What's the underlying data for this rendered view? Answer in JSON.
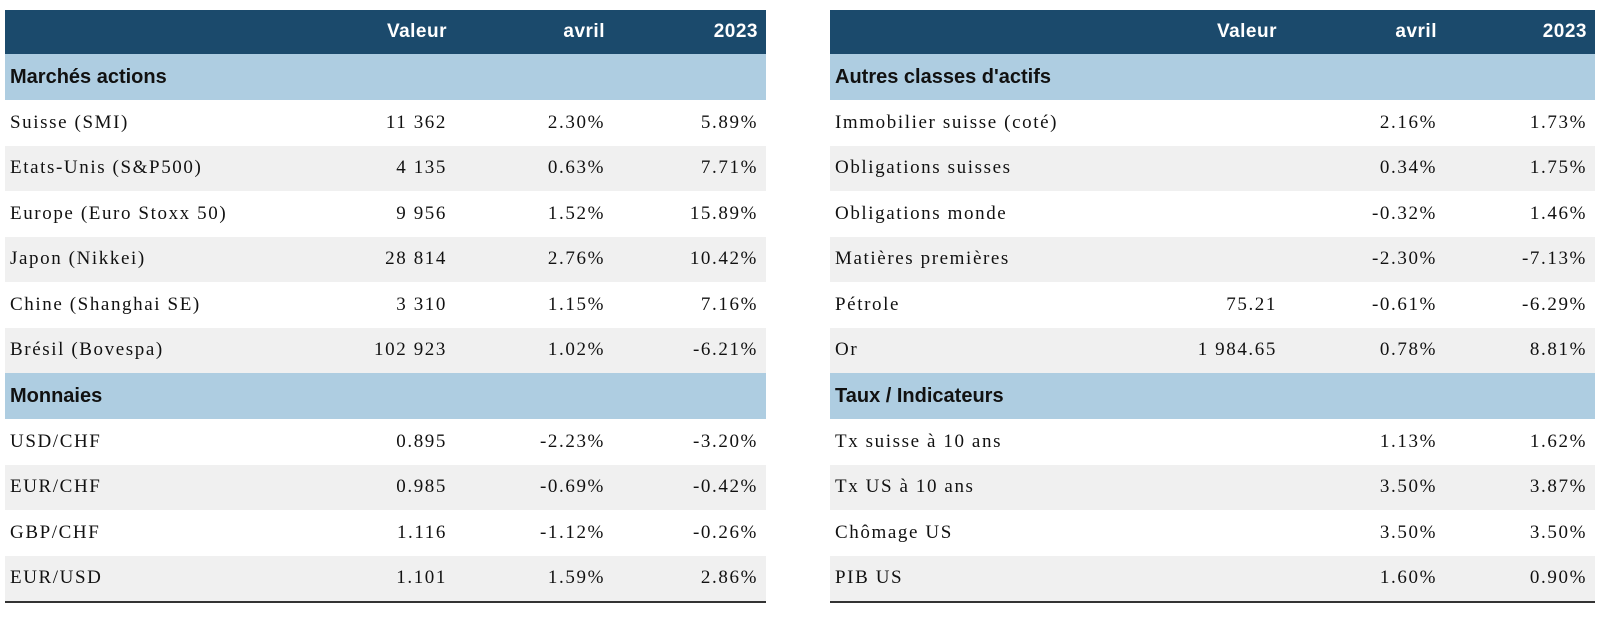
{
  "left": {
    "headers": [
      "",
      "Valeur",
      "avril",
      "2023"
    ],
    "sections": [
      {
        "title": "Marchés actions",
        "rows": [
          {
            "name": "Suisse (SMI)",
            "valeur": "11 362",
            "avril": "2.30%",
            "ytd": "5.89%"
          },
          {
            "name": "Etats-Unis (S&P500)",
            "valeur": "4 135",
            "avril": "0.63%",
            "ytd": "7.71%"
          },
          {
            "name": "Europe (Euro Stoxx 50)",
            "valeur": "9 956",
            "avril": "1.52%",
            "ytd": "15.89%"
          },
          {
            "name": "Japon (Nikkei)",
            "valeur": "28 814",
            "avril": "2.76%",
            "ytd": "10.42%"
          },
          {
            "name": "Chine (Shanghai SE)",
            "valeur": "3 310",
            "avril": "1.15%",
            "ytd": "7.16%"
          },
          {
            "name": "Brésil (Bovespa)",
            "valeur": "102 923",
            "avril": "1.02%",
            "ytd": "-6.21%"
          }
        ]
      },
      {
        "title": "Monnaies",
        "rows": [
          {
            "name": "USD/CHF",
            "valeur": "0.895",
            "avril": "-2.23%",
            "ytd": "-3.20%"
          },
          {
            "name": "EUR/CHF",
            "valeur": "0.985",
            "avril": "-0.69%",
            "ytd": "-0.42%"
          },
          {
            "name": "GBP/CHF",
            "valeur": "1.116",
            "avril": "-1.12%",
            "ytd": "-0.26%"
          },
          {
            "name": "EUR/USD",
            "valeur": "1.101",
            "avril": "1.59%",
            "ytd": "2.86%"
          }
        ]
      }
    ]
  },
  "right": {
    "headers": [
      "",
      "Valeur",
      "avril",
      "2023"
    ],
    "sections": [
      {
        "title": "Autres classes d'actifs",
        "rows": [
          {
            "name": "Immobilier suisse (coté)",
            "valeur": "",
            "avril": "2.16%",
            "ytd": "1.73%"
          },
          {
            "name": "Obligations suisses",
            "valeur": "",
            "avril": "0.34%",
            "ytd": "1.75%"
          },
          {
            "name": "Obligations monde",
            "valeur": "",
            "avril": "-0.32%",
            "ytd": "1.46%"
          },
          {
            "name": "Matières premières",
            "valeur": "",
            "avril": "-2.30%",
            "ytd": "-7.13%"
          },
          {
            "name": "Pétrole",
            "valeur": "75.21",
            "avril": "-0.61%",
            "ytd": "-6.29%"
          },
          {
            "name": "Or",
            "valeur": "1 984.65",
            "avril": "0.78%",
            "ytd": "8.81%"
          }
        ]
      },
      {
        "title": "Taux / Indicateurs",
        "rows": [
          {
            "name": "Tx suisse à 10 ans",
            "valeur": "",
            "avril": "1.13%",
            "ytd": "1.62%"
          },
          {
            "name": "Tx US à 10 ans",
            "valeur": "",
            "avril": "3.50%",
            "ytd": "3.87%"
          },
          {
            "name": "Chômage US",
            "valeur": "",
            "avril": "3.50%",
            "ytd": "3.50%"
          },
          {
            "name": "PIB US",
            "valeur": "",
            "avril": "1.60%",
            "ytd": "0.90%"
          }
        ]
      }
    ]
  },
  "colors": {
    "header_bg": "#1b4a6c",
    "section_bg": "#aecde1",
    "row_alt_bg": "#f0f0f0",
    "rule": "#333333"
  }
}
